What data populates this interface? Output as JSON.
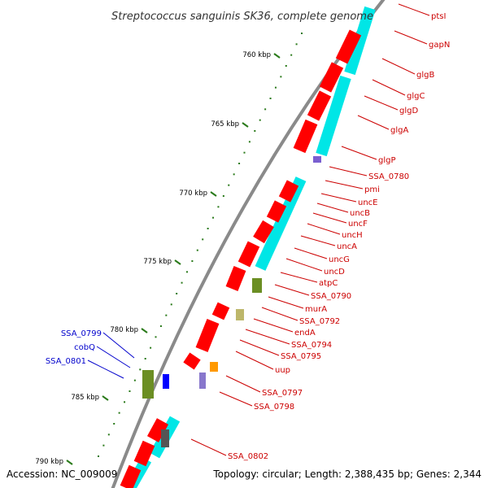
{
  "title": "Streptococcus sanguinis SK36, complete genome",
  "footer": {
    "accession": "Accession: NC_009009",
    "topology": "Topology: circular; Length: 2,388,435 bp; Genes: 2,344"
  },
  "colors": {
    "forward_gene": "#ff0000",
    "reverse_gene": "#ff0000",
    "cog_track": "#00e6e6",
    "label_red": "#cc0000",
    "label_blue": "#0000cc",
    "tick": "#2a7a1a",
    "backbone": "#8a8a8a"
  },
  "kbp_ticks": [
    {
      "kbp": 760,
      "label": "760 kbp"
    },
    {
      "kbp": 765,
      "label": "765 kbp"
    },
    {
      "kbp": 770,
      "label": "770 kbp"
    },
    {
      "kbp": 775,
      "label": "775 kbp"
    },
    {
      "kbp": 780,
      "label": "780 kbp"
    },
    {
      "kbp": 785,
      "label": "785 kbp"
    },
    {
      "kbp": 790,
      "label": "790 kbp"
    }
  ],
  "genes_reverse_labels": [
    {
      "name": "ptsI"
    },
    {
      "name": "gapN"
    },
    {
      "name": "glgB"
    },
    {
      "name": "glgC"
    },
    {
      "name": "glgD"
    },
    {
      "name": "glgA"
    },
    {
      "name": "glgP"
    },
    {
      "name": "SSA_0780"
    },
    {
      "name": "pmi"
    },
    {
      "name": "uncE"
    },
    {
      "name": "uncB"
    },
    {
      "name": "uncF"
    },
    {
      "name": "uncH"
    },
    {
      "name": "uncA"
    },
    {
      "name": "uncG"
    },
    {
      "name": "uncD"
    },
    {
      "name": "atpC"
    },
    {
      "name": "SSA_0790"
    },
    {
      "name": "murA"
    },
    {
      "name": "SSA_0792"
    },
    {
      "name": "endA"
    },
    {
      "name": "SSA_0794"
    },
    {
      "name": "SSA_0795"
    },
    {
      "name": "uup"
    },
    {
      "name": "SSA_0797"
    },
    {
      "name": "SSA_0798"
    },
    {
      "name": "SSA_0802"
    }
  ],
  "genes_forward_labels": [
    {
      "name": "SSA_0799"
    },
    {
      "name": "cobQ"
    },
    {
      "name": "SSA_0801"
    }
  ]
}
